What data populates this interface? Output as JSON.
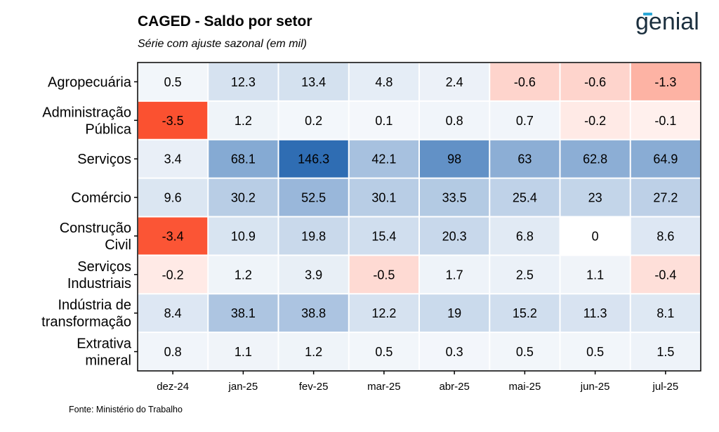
{
  "header": {
    "title": "CAGED - Saldo por setor",
    "subtitle": "Série com ajuste sazonal (em mil)",
    "brand": "genial"
  },
  "footer": {
    "source": "Fonte: Ministério do Trabalho"
  },
  "colors": {
    "positive_max": "#2f6db3",
    "negative_max": "#fb5130",
    "neutral": "#ffffff",
    "accent": "#2aa7d6"
  },
  "chart_data": {
    "type": "heatmap",
    "title": "CAGED - Saldo por setor",
    "subtitle": "Série com ajuste sazonal (em mil)",
    "x": [
      "dez-24",
      "jan-25",
      "fev-25",
      "mar-25",
      "abr-25",
      "mai-25",
      "jun-25",
      "jul-25"
    ],
    "y": [
      [
        "Agropecuária"
      ],
      [
        "Administração",
        "Pública"
      ],
      [
        "Serviços"
      ],
      [
        "Comércio"
      ],
      [
        "Construção",
        "Civil"
      ],
      [
        "Serviços",
        "Industriais"
      ],
      [
        "Indústria de",
        "transformação"
      ],
      [
        "Extrativa",
        "mineral"
      ]
    ],
    "values": [
      [
        0.5,
        12.3,
        13.4,
        4.8,
        2.4,
        -0.6,
        -0.6,
        -1.3
      ],
      [
        -3.5,
        1.2,
        0.2,
        0.1,
        0.8,
        0.7,
        -0.2,
        -0.1
      ],
      [
        3.4,
        68.1,
        146.3,
        42.1,
        98,
        63,
        62.8,
        64.9
      ],
      [
        9.6,
        30.2,
        52.5,
        30.1,
        33.5,
        25.4,
        23,
        27.2
      ],
      [
        -3.4,
        10.9,
        19.8,
        15.4,
        20.3,
        6.8,
        0,
        8.6
      ],
      [
        -0.2,
        1.2,
        3.9,
        -0.5,
        1.7,
        2.5,
        1.1,
        -0.4
      ],
      [
        8.4,
        38.1,
        38.8,
        12.2,
        19,
        15.2,
        11.3,
        8.1
      ],
      [
        0.8,
        1.1,
        1.2,
        0.5,
        0.3,
        0.5,
        0.5,
        1.5
      ]
    ],
    "color_scale": {
      "positive_max": 146.3,
      "negative_max": -3.5
    },
    "legend": "none",
    "grid": false
  }
}
